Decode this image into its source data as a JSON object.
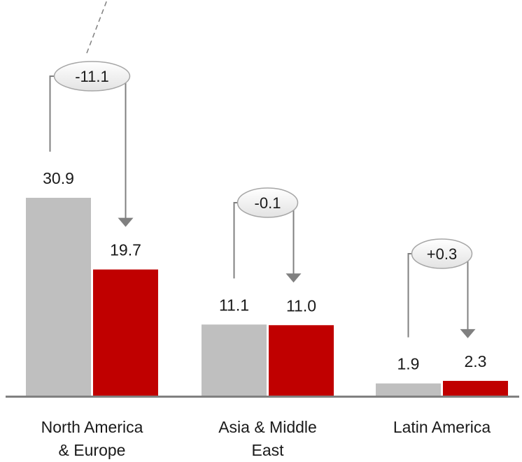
{
  "chart_data": {
    "type": "bar",
    "categories": [
      "North America\n& Europe",
      "Asia & Middle\nEast",
      "Latin America"
    ],
    "series": [
      {
        "values": [
          30.9,
          11.1,
          1.9
        ],
        "color": "#bfbfbf"
      },
      {
        "values": [
          19.7,
          11.0,
          2.3
        ],
        "color": "#c00000"
      }
    ],
    "value_labels": [
      [
        "30.9",
        "11.1",
        "1.9"
      ],
      [
        "19.7",
        "11.0",
        "2.3"
      ]
    ],
    "changes": [
      "-11.1",
      "-0.1",
      "+0.3"
    ],
    "ylim": [
      0,
      30.9
    ],
    "grid": false,
    "legend": "none",
    "colors": {
      "axis": "#808080",
      "arrow": "#808080",
      "bubble_border": "#a6a6a6",
      "bubble_fill": "#f2f2f2"
    }
  }
}
